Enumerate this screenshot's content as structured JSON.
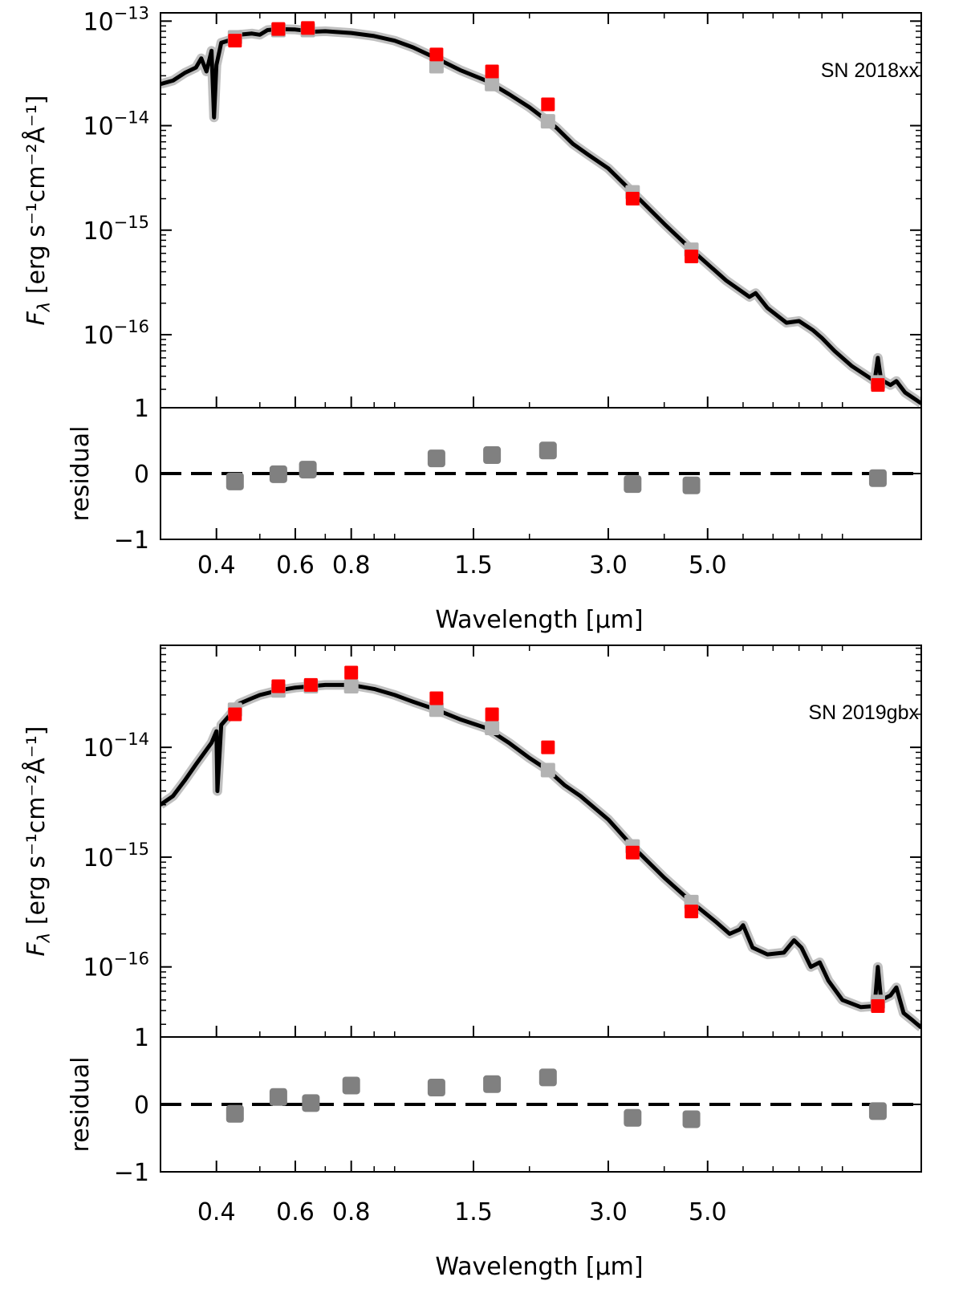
{
  "colors": {
    "model": "#000000",
    "model_band": "#c0c0c0",
    "observed": "#ff0000",
    "synthetic": "#b3b3b3",
    "residual_marker": "#808080",
    "zero_line": "#000000"
  },
  "chart_data": [
    {
      "type": "scatter",
      "label": "SN 2018xx",
      "flux": {
        "ylabel_text": "F",
        "ylabel_sub": "λ",
        "ylabel_units": " [erg s⁻¹cm⁻²Å⁻¹]",
        "yscale": "log",
        "ylim": [
          2e-17,
          1.2e-13
        ],
        "ytick_labels": [
          {
            "value": 1e-13,
            "base": "10",
            "exp": "−13"
          },
          {
            "value": 1e-14,
            "base": "10",
            "exp": "−14"
          },
          {
            "value": 1e-15,
            "base": "10",
            "exp": "−15"
          },
          {
            "value": 1e-16,
            "base": "10",
            "exp": "−16"
          }
        ],
        "observed": [
          {
            "x": 0.44,
            "y": 6.5e-14
          },
          {
            "x": 0.55,
            "y": 8.4e-14
          },
          {
            "x": 0.64,
            "y": 8.6e-14
          },
          {
            "x": 1.24,
            "y": 4.8e-14
          },
          {
            "x": 1.65,
            "y": 3.3e-14
          },
          {
            "x": 2.2,
            "y": 1.6e-14
          },
          {
            "x": 3.4,
            "y": 2e-15
          },
          {
            "x": 4.6,
            "y": 5.6e-16
          },
          {
            "x": 12.0,
            "y": 3.3e-17
          }
        ],
        "synthetic": [
          {
            "x": 0.44,
            "y": 7e-14
          },
          {
            "x": 0.55,
            "y": 8.2e-14
          },
          {
            "x": 0.64,
            "y": 8.2e-14
          },
          {
            "x": 1.24,
            "y": 3.7e-14
          },
          {
            "x": 1.65,
            "y": 2.5e-14
          },
          {
            "x": 2.2,
            "y": 1.1e-14
          },
          {
            "x": 3.4,
            "y": 2.3e-15
          },
          {
            "x": 4.6,
            "y": 6.5e-16
          },
          {
            "x": 12.0,
            "y": 3.5e-17
          }
        ],
        "model": [
          [
            0.3,
            2.5e-14
          ],
          [
            0.32,
            2.7e-14
          ],
          [
            0.34,
            3.2e-14
          ],
          [
            0.36,
            3.6e-14
          ],
          [
            0.37,
            4.4e-14
          ],
          [
            0.38,
            3.3e-14
          ],
          [
            0.39,
            5.2e-14
          ],
          [
            0.395,
            1.2e-14
          ],
          [
            0.4,
            3.8e-14
          ],
          [
            0.41,
            6.2e-14
          ],
          [
            0.43,
            6.6e-14
          ],
          [
            0.45,
            7.4e-14
          ],
          [
            0.48,
            7.6e-14
          ],
          [
            0.5,
            7.4e-14
          ],
          [
            0.52,
            8.2e-14
          ],
          [
            0.55,
            8.4e-14
          ],
          [
            0.6,
            8.3e-14
          ],
          [
            0.63,
            8.1e-14
          ],
          [
            0.65,
            7.9e-14
          ],
          [
            0.7,
            8e-14
          ],
          [
            0.8,
            7.7e-14
          ],
          [
            0.9,
            7.2e-14
          ],
          [
            1.0,
            6.5e-14
          ],
          [
            1.1,
            5.6e-14
          ],
          [
            1.24,
            4.4e-14
          ],
          [
            1.4,
            3.4e-14
          ],
          [
            1.6,
            2.7e-14
          ],
          [
            1.8,
            2e-14
          ],
          [
            2.0,
            1.5e-14
          ],
          [
            2.2,
            1.1e-14
          ],
          [
            2.3,
            9.5e-15
          ],
          [
            2.5,
            6.7e-15
          ],
          [
            2.7,
            5.3e-15
          ],
          [
            3.0,
            3.9e-15
          ],
          [
            3.4,
            2.3e-15
          ],
          [
            4.0,
            1.15e-15
          ],
          [
            4.6,
            6.5e-16
          ],
          [
            5.5,
            3.3e-16
          ],
          [
            6.2,
            2.3e-16
          ],
          [
            6.4,
            2.5e-16
          ],
          [
            6.8,
            1.8e-16
          ],
          [
            7.5,
            1.3e-16
          ],
          [
            8.0,
            1.35e-16
          ],
          [
            8.6,
            1.1e-16
          ],
          [
            9.0,
            9.3e-17
          ],
          [
            9.6,
            7e-17
          ],
          [
            10.5,
            5e-17
          ],
          [
            11.8,
            3.6e-17
          ],
          [
            12.0,
            6e-17
          ],
          [
            12.2,
            3.7e-17
          ],
          [
            12.8,
            3.3e-17
          ],
          [
            13.2,
            3.6e-17
          ],
          [
            13.8,
            2.8e-17
          ],
          [
            15.0,
            2.2e-17
          ]
        ]
      },
      "residual": {
        "ylabel": "residual",
        "ylim": [
          -1,
          1
        ],
        "ytick_labels": [
          "−1",
          "0",
          "1"
        ],
        "points": [
          {
            "x": 0.44,
            "y": -0.12
          },
          {
            "x": 0.55,
            "y": -0.01
          },
          {
            "x": 0.64,
            "y": 0.06
          },
          {
            "x": 1.24,
            "y": 0.23
          },
          {
            "x": 1.65,
            "y": 0.28
          },
          {
            "x": 2.2,
            "y": 0.35
          },
          {
            "x": 3.4,
            "y": -0.16
          },
          {
            "x": 4.6,
            "y": -0.18
          },
          {
            "x": 12.0,
            "y": -0.07
          }
        ]
      },
      "xlabel": "Wavelength [μm]",
      "xscale": "log",
      "xlim": [
        0.3,
        15.0
      ],
      "xtick_labels": [
        "0.4",
        "0.6",
        "0.8",
        "1.5",
        "3.0",
        "5.0"
      ],
      "xtick_values": [
        0.4,
        0.6,
        0.8,
        1.5,
        3.0,
        5.0
      ]
    },
    {
      "type": "scatter",
      "label": "SN 2019gbx",
      "flux": {
        "ylabel_text": "F",
        "ylabel_sub": "λ",
        "ylabel_units": " [erg s⁻¹cm⁻²Å⁻¹]",
        "yscale": "log",
        "ylim": [
          2.3e-17,
          8.5e-14
        ],
        "ytick_labels": [
          {
            "value": 1e-14,
            "base": "10",
            "exp": "−14"
          },
          {
            "value": 1e-15,
            "base": "10",
            "exp": "−15"
          },
          {
            "value": 1e-16,
            "base": "10",
            "exp": "−16"
          }
        ],
        "observed": [
          {
            "x": 0.44,
            "y": 2e-14
          },
          {
            "x": 0.55,
            "y": 3.6e-14
          },
          {
            "x": 0.65,
            "y": 3.7e-14
          },
          {
            "x": 0.8,
            "y": 4.8e-14
          },
          {
            "x": 1.24,
            "y": 2.8e-14
          },
          {
            "x": 1.65,
            "y": 2e-14
          },
          {
            "x": 2.2,
            "y": 1e-14
          },
          {
            "x": 3.4,
            "y": 1.1e-15
          },
          {
            "x": 4.6,
            "y": 3.2e-16
          },
          {
            "x": 12.0,
            "y": 4.4e-17
          }
        ],
        "synthetic": [
          {
            "x": 0.44,
            "y": 2.2e-14
          },
          {
            "x": 0.55,
            "y": 3.3e-14
          },
          {
            "x": 0.65,
            "y": 3.6e-14
          },
          {
            "x": 0.8,
            "y": 3.6e-14
          },
          {
            "x": 1.24,
            "y": 2.2e-14
          },
          {
            "x": 1.65,
            "y": 1.5e-14
          },
          {
            "x": 2.2,
            "y": 6.2e-15
          },
          {
            "x": 3.4,
            "y": 1.25e-15
          },
          {
            "x": 4.6,
            "y": 3.9e-16
          },
          {
            "x": 12.0,
            "y": 4.8e-17
          }
        ],
        "model": [
          [
            0.3,
            3e-15
          ],
          [
            0.32,
            3.6e-15
          ],
          [
            0.34,
            5e-15
          ],
          [
            0.36,
            7e-15
          ],
          [
            0.38,
            9.5e-15
          ],
          [
            0.39,
            1.1e-14
          ],
          [
            0.4,
            1.4e-14
          ],
          [
            0.402,
            4e-15
          ],
          [
            0.41,
            1.6e-14
          ],
          [
            0.43,
            2e-14
          ],
          [
            0.45,
            2.5e-14
          ],
          [
            0.48,
            2.8e-14
          ],
          [
            0.5,
            3e-14
          ],
          [
            0.55,
            3.3e-14
          ],
          [
            0.6,
            3.5e-14
          ],
          [
            0.65,
            3.6e-14
          ],
          [
            0.7,
            3.7e-14
          ],
          [
            0.8,
            3.7e-14
          ],
          [
            0.9,
            3.4e-14
          ],
          [
            1.0,
            3e-14
          ],
          [
            1.1,
            2.6e-14
          ],
          [
            1.24,
            2.2e-14
          ],
          [
            1.4,
            1.8e-14
          ],
          [
            1.6,
            1.5e-14
          ],
          [
            1.8,
            1.1e-14
          ],
          [
            2.0,
            8e-15
          ],
          [
            2.2,
            6.2e-15
          ],
          [
            2.4,
            4.5e-15
          ],
          [
            2.6,
            3.6e-15
          ],
          [
            3.0,
            2.2e-15
          ],
          [
            3.4,
            1.25e-15
          ],
          [
            4.0,
            6.5e-16
          ],
          [
            4.6,
            3.9e-16
          ],
          [
            5.2,
            2.6e-16
          ],
          [
            5.6,
            2e-16
          ],
          [
            5.9,
            2.2e-16
          ],
          [
            6.0,
            2.4e-16
          ],
          [
            6.3,
            1.5e-16
          ],
          [
            6.8,
            1.3e-16
          ],
          [
            7.4,
            1.35e-16
          ],
          [
            7.8,
            1.75e-16
          ],
          [
            8.1,
            1.5e-16
          ],
          [
            8.5,
            1e-16
          ],
          [
            8.9,
            1.1e-16
          ],
          [
            9.3,
            7.5e-17
          ],
          [
            10.0,
            5e-17
          ],
          [
            11.0,
            4.3e-17
          ],
          [
            11.8,
            4.4e-17
          ],
          [
            12.0,
            1e-16
          ],
          [
            12.2,
            5e-17
          ],
          [
            12.8,
            5.5e-17
          ],
          [
            13.2,
            6.5e-17
          ],
          [
            13.7,
            3.8e-17
          ],
          [
            14.3,
            3.3e-17
          ],
          [
            15.0,
            2.8e-17
          ]
        ]
      },
      "residual": {
        "ylabel": "residual",
        "ylim": [
          -1,
          1
        ],
        "ytick_labels": [
          "−1",
          "0",
          "1"
        ],
        "points": [
          {
            "x": 0.44,
            "y": -0.14
          },
          {
            "x": 0.55,
            "y": 0.11
          },
          {
            "x": 0.65,
            "y": 0.02
          },
          {
            "x": 0.8,
            "y": 0.28
          },
          {
            "x": 1.24,
            "y": 0.25
          },
          {
            "x": 1.65,
            "y": 0.3
          },
          {
            "x": 2.2,
            "y": 0.4
          },
          {
            "x": 3.4,
            "y": -0.2
          },
          {
            "x": 4.6,
            "y": -0.22
          },
          {
            "x": 12.0,
            "y": -0.1
          }
        ]
      },
      "xlabel": "Wavelength [μm]",
      "xscale": "log",
      "xlim": [
        0.3,
        15.0
      ],
      "xtick_labels": [
        "0.4",
        "0.6",
        "0.8",
        "1.5",
        "3.0",
        "5.0"
      ],
      "xtick_values": [
        0.4,
        0.6,
        0.8,
        1.5,
        3.0,
        5.0
      ]
    }
  ]
}
